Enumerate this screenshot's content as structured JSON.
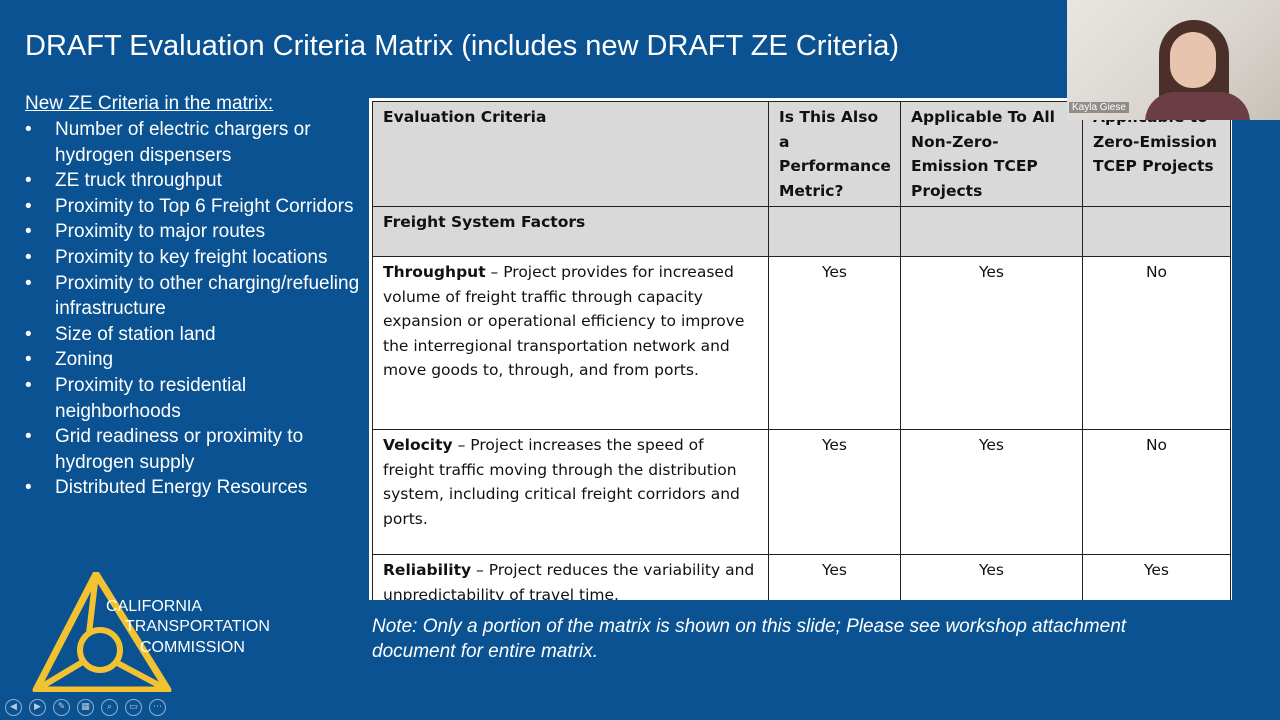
{
  "slide": {
    "title": "DRAFT Evaluation Criteria Matrix (includes new DRAFT ZE Criteria)"
  },
  "ze_criteria": {
    "heading": "New ZE Criteria in the matrix:",
    "bullet": "•",
    "items": [
      "Number of electric chargers or hydrogen dispensers",
      "ZE truck throughput",
      "Proximity to Top 6 Freight Corridors",
      "Proximity to major routes",
      "Proximity to key freight locations",
      "Proximity to other charging/refueling infrastructure",
      "Size of station land",
      "Zoning",
      "Proximity to residential neighborhoods",
      "Grid readiness or proximity to hydrogen supply",
      "Distributed Energy Resources"
    ]
  },
  "matrix": {
    "headers": [
      "Evaluation Criteria",
      "Is This Also a Performance Metric?",
      "Applicable To All Non-Zero-Emission TCEP Projects",
      "Applicable to Zero-Emission TCEP Projects"
    ],
    "section": "Freight System Factors",
    "rows": [
      {
        "name": "Throughput",
        "description": " – Project provides for increased volume of freight traffic through capacity expansion or operational efficiency to improve the interregional transportation network and move goods to, through, and from ports.",
        "performance_metric": "Yes",
        "non_ze": "Yes",
        "ze": "No"
      },
      {
        "name": "Velocity",
        "description": " – Project increases the speed of freight traffic moving through the distribution system, including critical freight corridors and ports.",
        "performance_metric": "Yes",
        "non_ze": "Yes",
        "ze": "No"
      },
      {
        "name": "Reliability",
        "description": " – Project reduces the variability and unpredictability of travel time.",
        "performance_metric": "Yes",
        "non_ze": "Yes",
        "ze": "Yes"
      }
    ]
  },
  "note": "Note: Only a portion of the matrix is shown on this slide; Please see workshop attachment document for entire matrix.",
  "logo": {
    "line1": "CALIFORNIA",
    "line2": "TRANSPORTATION",
    "line3": "COMMISSION",
    "color": "#f2c230"
  },
  "video_tile": {
    "participant_name": "Kayla Giese"
  },
  "toolbar": {
    "buttons": [
      "prev-icon",
      "next-icon",
      "pen-icon",
      "slides-icon",
      "zoom-icon",
      "subtitles-icon",
      "more-icon"
    ],
    "glyphs": [
      "◀",
      "▶",
      "✎",
      "▦",
      "⌕",
      "▭",
      "⋯"
    ]
  },
  "colors": {
    "background": "#0b5292",
    "table_header": "#d9d9d9"
  }
}
